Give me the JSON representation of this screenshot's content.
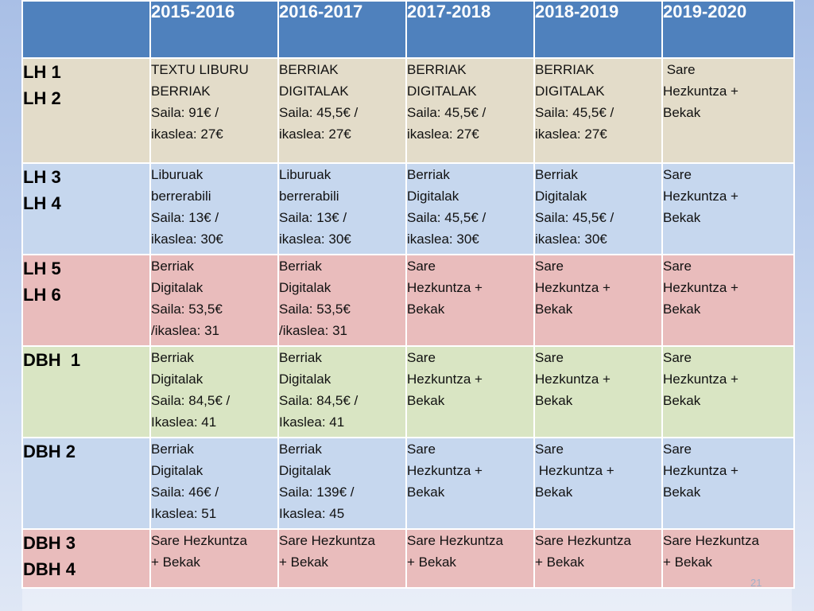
{
  "table": {
    "years": [
      "2015-2016",
      "2016-2017",
      "2017-2018",
      "2018-2019",
      "2019-2020"
    ],
    "rows": [
      {
        "label": [
          "LH 1",
          "LH 2"
        ],
        "cells": [
          [
            "TEXTU LIBURU",
            "BERRIAK",
            "Saila: 91€ /",
            "ikaslea: 27€"
          ],
          [
            "BERRIAK",
            "DIGITALAK",
            "Saila: 45,5€ /",
            "ikaslea: 27€"
          ],
          [
            "BERRIAK",
            "DIGITALAK",
            "Saila: 45,5€ /",
            "ikaslea: 27€"
          ],
          [
            "BERRIAK",
            "DIGITALAK",
            "Saila: 45,5€ /",
            "ikaslea: 27€"
          ],
          [
            " Sare",
            "Hezkuntza +",
            "Bekak",
            ""
          ]
        ]
      },
      {
        "label": [
          "LH 3",
          "LH 4"
        ],
        "cells": [
          [
            "Liburuak",
            "berrerabili",
            "Saila: 13€ /",
            "ikaslea: 30€"
          ],
          [
            "Liburuak",
            "berrerabili",
            "Saila: 13€ /",
            "ikaslea: 30€"
          ],
          [
            "Berriak",
            "Digitalak",
            "Saila: 45,5€ /",
            "ikaslea: 30€"
          ],
          [
            "Berriak",
            "Digitalak",
            "Saila: 45,5€ /",
            "ikaslea: 30€"
          ],
          [
            "Sare",
            "Hezkuntza +",
            "Bekak",
            ""
          ]
        ]
      },
      {
        "label": [
          "LH 5",
          "LH 6"
        ],
        "cells": [
          [
            "Berriak",
            "Digitalak",
            "Saila: 53,5€",
            "/ikaslea: 31"
          ],
          [
            "Berriak",
            "Digitalak",
            "Saila: 53,5€",
            "/ikaslea: 31"
          ],
          [
            "Sare",
            "Hezkuntza +",
            "Bekak",
            ""
          ],
          [
            "Sare",
            "Hezkuntza +",
            "Bekak",
            ""
          ],
          [
            "Sare",
            "Hezkuntza +",
            "Bekak",
            ""
          ]
        ]
      },
      {
        "label": [
          "DBH  1",
          ""
        ],
        "cells": [
          [
            "Berriak",
            "Digitalak",
            "Saila: 84,5€ /",
            "Ikaslea: 41"
          ],
          [
            "Berriak",
            "Digitalak",
            "Saila: 84,5€ /",
            "Ikaslea: 41"
          ],
          [
            "Sare",
            "Hezkuntza +",
            "Bekak",
            ""
          ],
          [
            "Sare",
            "Hezkuntza +",
            "Bekak",
            ""
          ],
          [
            "Sare",
            "Hezkuntza +",
            "Bekak",
            ""
          ]
        ]
      },
      {
        "label": [
          "DBH 2",
          ""
        ],
        "cells": [
          [
            "Berriak",
            "Digitalak",
            "Saila: 46€ /",
            "Ikaslea: 51"
          ],
          [
            "Berriak",
            "Digitalak",
            "Saila: 139€ /",
            "Ikaslea: 45"
          ],
          [
            "Sare",
            "Hezkuntza +",
            "Bekak",
            ""
          ],
          [
            "Sare",
            " Hezkuntza +",
            "Bekak",
            ""
          ],
          [
            "Sare",
            "Hezkuntza +",
            "Bekak",
            ""
          ]
        ]
      },
      {
        "label": [
          "DBH 3",
          "DBH 4"
        ],
        "cells": [
          [
            "Sare Hezkuntza",
            "+ Bekak",
            "",
            ""
          ],
          [
            "Sare Hezkuntza",
            "+ Bekak",
            "",
            ""
          ],
          [
            "Sare Hezkuntza",
            "+ Bekak",
            "",
            ""
          ],
          [
            "Sare Hezkuntza",
            "+ Bekak",
            "",
            ""
          ],
          [
            "Sare Hezkuntza",
            "+ Bekak",
            "",
            ""
          ]
        ]
      }
    ]
  },
  "page_number": "21",
  "colors": {
    "header_blue": "#4f81bd",
    "row_beige": "#e3dcc9",
    "row_blue": "#c6d7ee",
    "row_pink": "#e9bcbc",
    "row_green": "#d9e5c3"
  }
}
